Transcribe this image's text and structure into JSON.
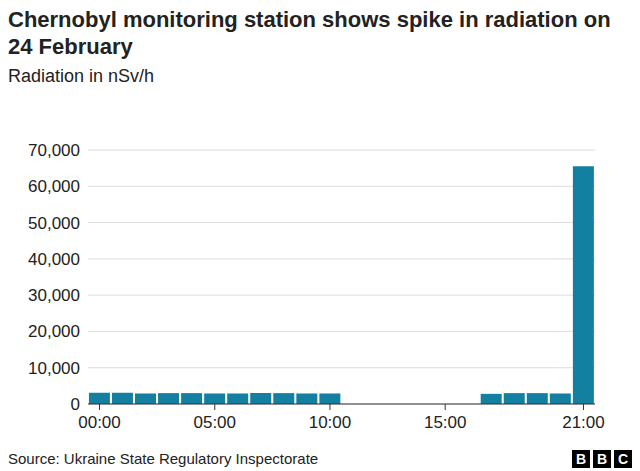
{
  "chart_data": {
    "type": "bar",
    "title": "Chernobyl monitoring station shows spike in radiation on 24 February",
    "subtitle": "Radiation in nSv/h",
    "source": "Source: Ukraine State Regulatory Inspectorate",
    "logo": "BBC",
    "categories": [
      "00:00",
      null,
      null,
      null,
      null,
      "05:00",
      null,
      null,
      null,
      null,
      "10:00",
      null,
      null,
      null,
      null,
      "15:00",
      null,
      null,
      null,
      null,
      null,
      "21:00"
    ],
    "values": [
      3100,
      3100,
      2900,
      3000,
      3000,
      2900,
      2900,
      3000,
      3000,
      2900,
      2900,
      null,
      null,
      null,
      null,
      null,
      null,
      2800,
      3000,
      3000,
      2900,
      65500
    ],
    "color": "#1380a1",
    "ylim": [
      0,
      70000
    ],
    "yticks": [
      0,
      {
        "value": 10000,
        "label": "10,000"
      },
      {
        "value": 20000,
        "label": "20,000"
      },
      {
        "value": 30000,
        "label": "30,000"
      },
      {
        "value": 40000,
        "label": "40,000"
      },
      {
        "value": 50000,
        "label": "50,000"
      },
      {
        "value": 60000,
        "label": "60,000"
      },
      {
        "value": 70000,
        "label": "70,000"
      }
    ],
    "grid": true
  }
}
